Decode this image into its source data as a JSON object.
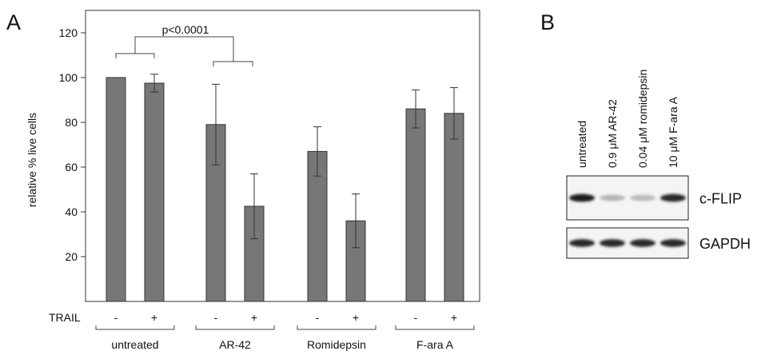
{
  "panels": {
    "a_letter": "A",
    "b_letter": "B"
  },
  "chart_data": {
    "type": "bar",
    "title": "",
    "xlabel": "",
    "ylabel": "relative % live cells",
    "ylim": [
      0,
      130
    ],
    "yticks": [
      20,
      40,
      60,
      80,
      100,
      120
    ],
    "grid": false,
    "legend": "none",
    "bar_color": "#777777",
    "trail_label": "TRAIL",
    "groups": [
      {
        "label": "untreated",
        "bars": [
          {
            "trail": "-",
            "value": 100,
            "error": 0
          },
          {
            "trail": "+",
            "value": 97.5,
            "error": 4
          }
        ]
      },
      {
        "label": "AR-42",
        "bars": [
          {
            "trail": "-",
            "value": 79,
            "error": 18
          },
          {
            "trail": "+",
            "value": 42.5,
            "error": 14.5
          }
        ]
      },
      {
        "label": "Romidepsin",
        "bars": [
          {
            "trail": "-",
            "value": 67,
            "error": 11
          },
          {
            "trail": "+",
            "value": 36,
            "error": 12
          }
        ]
      },
      {
        "label": "F-ara A",
        "bars": [
          {
            "trail": "-",
            "value": 86,
            "error": 8.5
          },
          {
            "trail": "+",
            "value": 84,
            "error": 11.5
          }
        ]
      }
    ],
    "annotation": "p<0.0001"
  },
  "blot": {
    "lanes": [
      "untreated",
      "0.9 μM AR-42",
      "0.04 μM romidepsin",
      "10 μM F-ara A"
    ],
    "proteins": [
      {
        "name": "c-FLIP",
        "intensities": [
          0.95,
          0.25,
          0.22,
          0.9
        ]
      },
      {
        "name": "GAPDH",
        "intensities": [
          0.9,
          0.9,
          0.9,
          0.9
        ]
      }
    ]
  }
}
